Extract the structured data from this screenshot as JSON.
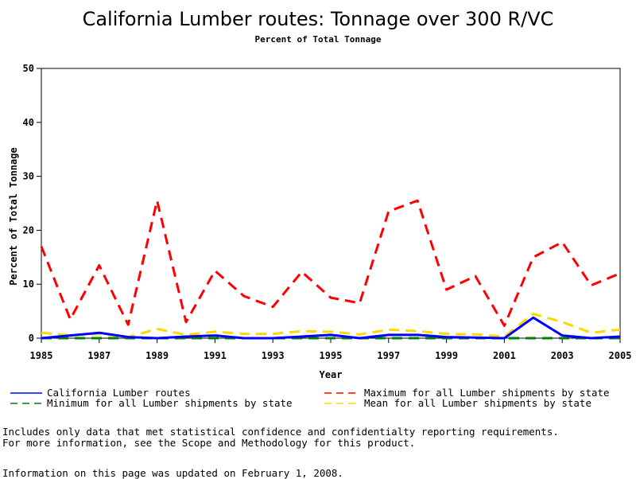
{
  "chart_data": {
    "type": "line",
    "title": "California Lumber routes: Tonnage over 300 R/VC",
    "subtitle": "Percent of Total Tonnage",
    "xlabel": "Year",
    "ylabel": "Percent of Total Tonnage",
    "xlim": [
      1985,
      2005
    ],
    "ylim": [
      0,
      50
    ],
    "x_ticks": [
      "1985",
      "1987",
      "1989",
      "1991",
      "1993",
      "1995",
      "1997",
      "1999",
      "2001",
      "2003",
      "2005"
    ],
    "y_ticks": [
      "0",
      "10",
      "20",
      "30",
      "40",
      "50"
    ],
    "x": [
      1985,
      1986,
      1987,
      1988,
      1989,
      1990,
      1991,
      1992,
      1993,
      1994,
      1995,
      1996,
      1997,
      1998,
      1999,
      2000,
      2001,
      2002,
      2003,
      2004,
      2005
    ],
    "series": [
      {
        "name": "California Lumber routes",
        "color": "#0000ff",
        "dash": "solid",
        "values": [
          0,
          0.5,
          1.0,
          0.2,
          0,
          0.3,
          0.5,
          0,
          0,
          0.3,
          0.6,
          0,
          0.6,
          0.6,
          0.2,
          0.1,
          0,
          3.8,
          0.5,
          0,
          0.3
        ]
      },
      {
        "name": "Maximum for all Lumber shipments by state",
        "color": "#ff0000",
        "dash": "dashed",
        "values": [
          17,
          3.5,
          13.5,
          2.5,
          25.5,
          3,
          12.5,
          7.8,
          5.8,
          12.3,
          7.5,
          6.5,
          23.5,
          25.5,
          9,
          11.5,
          2.3,
          15,
          17.8,
          9.8,
          12
        ]
      },
      {
        "name": "Minimum for all Lumber shipments by state",
        "color": "#008000",
        "dash": "dashed",
        "values": [
          0,
          0,
          0,
          0,
          0,
          0,
          0,
          0,
          0,
          0,
          0,
          0,
          0,
          0,
          0,
          0,
          0,
          0,
          0,
          0,
          0
        ]
      },
      {
        "name": "Mean for all Lumber shipments by state",
        "color": "#ffd700",
        "dash": "dashed",
        "values": [
          1.0,
          0.5,
          0.8,
          0.2,
          1.7,
          0.6,
          1.2,
          0.8,
          0.8,
          1.3,
          1.2,
          0.7,
          1.6,
          1.3,
          0.8,
          0.7,
          0.3,
          4.5,
          3.0,
          1.0,
          1.6
        ]
      }
    ],
    "legend_position": "bottom"
  },
  "notes": {
    "line1": "Includes only data that met statistical confidence and confidentialty reporting requirements.",
    "line2": "For more information, see the Scope and Methodology for this product.",
    "updated": "Information on this page was updated on February 1, 2008."
  }
}
